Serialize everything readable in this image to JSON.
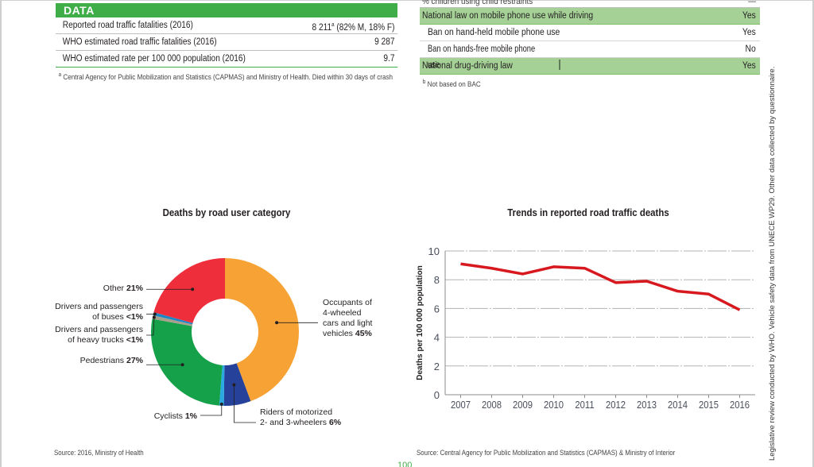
{
  "data_table": {
    "header": "DATA",
    "rows": [
      {
        "label": "Reported road traffic fatalities (2016)",
        "value": "8 211",
        "value_sup": "a",
        "value_suffix": " (82% M, 18% F)"
      },
      {
        "label": "WHO estimated road traffic fatalities (2016)",
        "value": "9 287"
      },
      {
        "label": "WHO estimated rate per 100 000 population (2016)",
        "value": "9.7"
      }
    ],
    "footnote_marker": "a",
    "footnote": "Central Agency for Public Mobilization and Statistics (CAPMAS) and Ministry of Health. Died within 30 days of crash"
  },
  "law_table": {
    "rows": [
      {
        "label": "% children using child restraints",
        "value": "—",
        "style": "cut"
      },
      {
        "label": "National law on mobile phone use while driving",
        "value": "Yes",
        "style": "highlight"
      },
      {
        "label": "Ban on hand-held mobile phone use",
        "value": "Yes",
        "style": "sub"
      },
      {
        "label": "Ban on hands-free mobile phone use",
        "value": "No",
        "style": "sub"
      },
      {
        "label": "National drug-driving law",
        "value": "Yes",
        "style": "highlight"
      }
    ],
    "footnote_marker": "b",
    "footnote": "Not based on BAC"
  },
  "side_note": "Legislative review conducted by WHO. Vehicle safety data from UNECE WP29. Other data collected by questionnaire.",
  "page_number": "100",
  "chart_data": [
    {
      "type": "pie",
      "donut": true,
      "title": "Deaths by road user category",
      "slices": [
        {
          "name": "Occupants of 4-wheeled cars and light vehicles",
          "value": 45,
          "label": "45%",
          "color": "#f7a234"
        },
        {
          "name": "Riders of motorized 2- and 3-wheelers",
          "value": 6,
          "label": "6%",
          "color": "#26419a"
        },
        {
          "name": "Cyclists",
          "value": 1,
          "label": "1%",
          "color": "#29abe2"
        },
        {
          "name": "Pedestrians",
          "value": 27,
          "label": "27%",
          "color": "#15a04a"
        },
        {
          "name": "Drivers and passengers of heavy trucks",
          "value": 0.8,
          "label": "<1%",
          "color": "#a89f8c"
        },
        {
          "name": "Drivers and passengers of buses",
          "value": 0.7,
          "label": "<1%",
          "color": "#1d87c6"
        },
        {
          "name": "Other",
          "value": 21,
          "label": "21%",
          "color": "#ee2e3a"
        }
      ],
      "label_lines": {
        "occupants": [
          "Occupants of",
          "4-wheeled",
          "cars and light",
          "vehicles"
        ],
        "riders": [
          "Riders of motorized",
          "2- and 3-wheelers"
        ],
        "cyclists": [
          "Cyclists"
        ],
        "pedestrians": [
          "Pedestrians"
        ],
        "trucks": [
          "Drivers and passengers",
          "of heavy trucks"
        ],
        "buses": [
          "Drivers and passengers",
          "of buses"
        ],
        "other": [
          "Other"
        ]
      },
      "source": "Source: 2016, Ministry of Health"
    },
    {
      "type": "line",
      "title": "Trends in reported road traffic deaths",
      "xlabel": "",
      "ylabel": "Deaths per 100 000 population",
      "x": [
        2007,
        2008,
        2009,
        2010,
        2011,
        2012,
        2013,
        2014,
        2015,
        2016
      ],
      "series": [
        {
          "name": "Reported deaths per 100 000",
          "values": [
            9.1,
            8.8,
            8.4,
            8.9,
            8.8,
            7.8,
            7.9,
            7.2,
            7.0,
            5.9
          ],
          "color": "#d7191f"
        }
      ],
      "ylim": [
        0,
        10
      ],
      "yticks": [
        0,
        2,
        4,
        6,
        8,
        10
      ],
      "grid": true,
      "source": "Source: Central Agency for Public Mobilization and Statistics (CAPMAS) & Ministry of Interior"
    }
  ]
}
